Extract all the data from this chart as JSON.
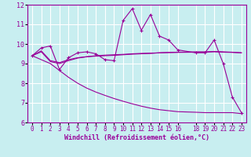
{
  "background_color": "#c8eef0",
  "grid_color": "#ffffff",
  "line_color": "#990099",
  "xlabel": "Windchill (Refroidissement éolien,°C)",
  "xlim": [
    -0.5,
    23.5
  ],
  "ylim": [
    6,
    12
  ],
  "yticks": [
    6,
    7,
    8,
    9,
    10,
    11,
    12
  ],
  "xticks": [
    0,
    1,
    2,
    3,
    4,
    5,
    6,
    7,
    8,
    9,
    10,
    11,
    12,
    13,
    14,
    15,
    16,
    18,
    19,
    20,
    21,
    22,
    23
  ],
  "lines": [
    {
      "x": [
        0,
        1,
        2,
        3,
        4,
        5,
        6,
        7,
        8,
        9,
        10,
        11,
        12,
        13,
        14,
        15,
        16,
        18,
        19,
        20,
        21,
        22,
        23
      ],
      "y": [
        9.4,
        9.8,
        9.9,
        8.7,
        9.3,
        9.55,
        9.6,
        9.5,
        9.2,
        9.15,
        11.2,
        11.8,
        10.7,
        11.5,
        10.4,
        10.2,
        9.7,
        9.55,
        9.55,
        10.2,
        9.0,
        7.3,
        6.5
      ],
      "marker": "+"
    },
    {
      "x": [
        0,
        1,
        2,
        3,
        4,
        5,
        6,
        7,
        8,
        9,
        10,
        11,
        12,
        13,
        14,
        15,
        16,
        18,
        19,
        20,
        21,
        22,
        23
      ],
      "y": [
        9.4,
        9.65,
        9.15,
        9.05,
        9.2,
        9.3,
        9.35,
        9.38,
        9.4,
        9.42,
        9.45,
        9.48,
        9.5,
        9.52,
        9.55,
        9.57,
        9.58,
        9.6,
        9.6,
        9.62,
        9.6,
        9.58,
        9.55
      ],
      "marker": null
    },
    {
      "x": [
        0,
        1,
        2,
        3,
        4,
        5,
        6,
        7,
        8,
        9,
        10,
        11,
        12,
        13,
        14,
        15,
        16,
        18,
        19,
        20,
        21,
        22,
        23
      ],
      "y": [
        9.4,
        9.6,
        9.1,
        9.0,
        9.15,
        9.28,
        9.35,
        9.4,
        9.43,
        9.45,
        9.47,
        9.5,
        9.52,
        9.53,
        9.55,
        9.56,
        9.57,
        9.58,
        9.58,
        9.6,
        9.58,
        9.57,
        9.55
      ],
      "marker": null
    },
    {
      "x": [
        0,
        2,
        3,
        4,
        5,
        6,
        7,
        8,
        9,
        10,
        11,
        12,
        13,
        14,
        15,
        16,
        18,
        19,
        20,
        21,
        22,
        23
      ],
      "y": [
        9.4,
        9.0,
        8.65,
        8.3,
        8.0,
        7.75,
        7.55,
        7.38,
        7.22,
        7.08,
        6.95,
        6.83,
        6.73,
        6.65,
        6.6,
        6.55,
        6.52,
        6.5,
        6.5,
        6.5,
        6.5,
        6.45
      ],
      "marker": null
    }
  ]
}
